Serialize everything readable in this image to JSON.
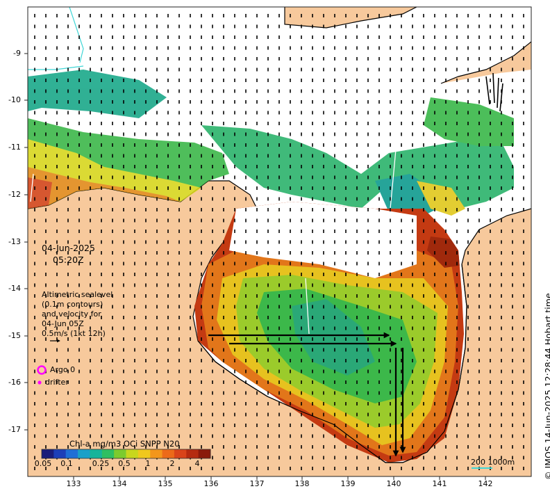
{
  "map": {
    "date": "04-Jun-2025",
    "time": "05:20Z",
    "colors": {
      "land": "#f7c99c",
      "ocean_nodata": "#ffffff",
      "coast": "#000000",
      "reef": "#3fd6d6"
    }
  },
  "axes": {
    "lat_labels": [
      "-9",
      "-10",
      "-11",
      "-12",
      "-13",
      "-14",
      "-15",
      "-16",
      "-17"
    ],
    "lon_labels": [
      "133",
      "134",
      "135",
      "136",
      "137",
      "138",
      "139",
      "140",
      "141",
      "142"
    ]
  },
  "legend": {
    "sealevel_lines": [
      "Altimetric sealevel",
      "(0.1m contours)",
      "and velocity for",
      "04-Jun 05Z",
      "0.5m/s (1kt 12h)"
    ],
    "argo_label": "Argo 0",
    "drifter_label": "drifter",
    "argo_color": "#ff00ff",
    "drifter_color": "#ff00ff"
  },
  "colorbar": {
    "title": "Chl-a mg/m3 OCi SNPP N20",
    "ticks": [
      "0.05",
      "0.1",
      "0.25",
      "0.5",
      "1",
      "2",
      "4"
    ]
  },
  "scale": {
    "label": "200 1000m",
    "color": "#3fd6d6"
  },
  "credit": "© IMOS 14-Jun-2025 12:28:44 Hobart time"
}
